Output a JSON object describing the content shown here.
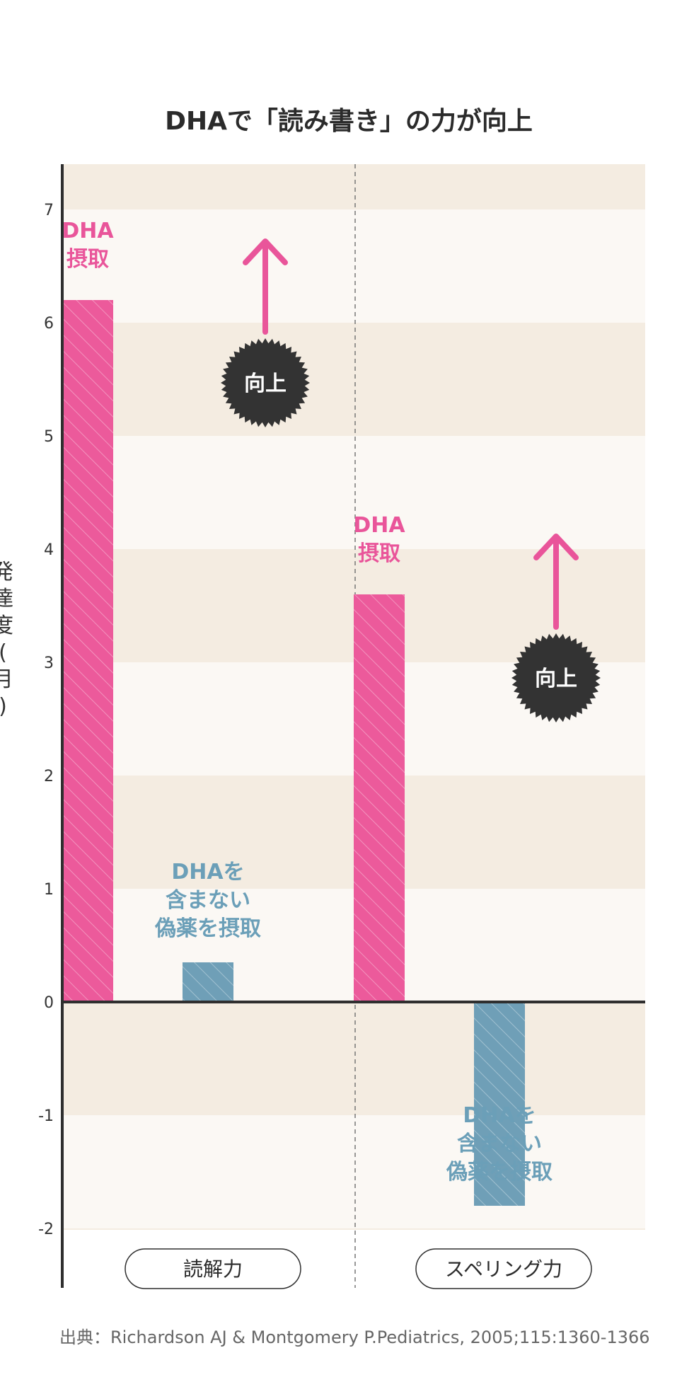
{
  "chart_data": {
    "type": "bar",
    "title": "DHAで「読み書き」の力が向上",
    "ylabel": "発達度(月)",
    "ylim": [
      -2,
      7
    ],
    "yticks": [
      -2,
      -1,
      0,
      1,
      2,
      3,
      4,
      5,
      6,
      7
    ],
    "categories": [
      "読解力",
      "スペリング力"
    ],
    "series": [
      {
        "name": "DHA摂取",
        "values": [
          6.2,
          3.6
        ],
        "color": "#ec5a9b"
      },
      {
        "name": "DHAを含まない偽薬を摂取",
        "values": [
          0.35,
          -1.8
        ],
        "color": "#6f9fb7"
      }
    ],
    "bar_labels": {
      "dha": [
        "DHA",
        "摂取"
      ],
      "placebo": [
        "DHAを",
        "含まない",
        "偽薬を摂取"
      ]
    },
    "badge": "向上",
    "source": "出典：Richardson AJ & Montgomery P.Pediatrics, 2005;115:1360-1366",
    "colors": {
      "band_dark": "#f4ece1",
      "band_light": "#fbf8f4",
      "axis": "#2f2f2f",
      "badge": "#333333",
      "arrow": "#e9559a"
    }
  }
}
